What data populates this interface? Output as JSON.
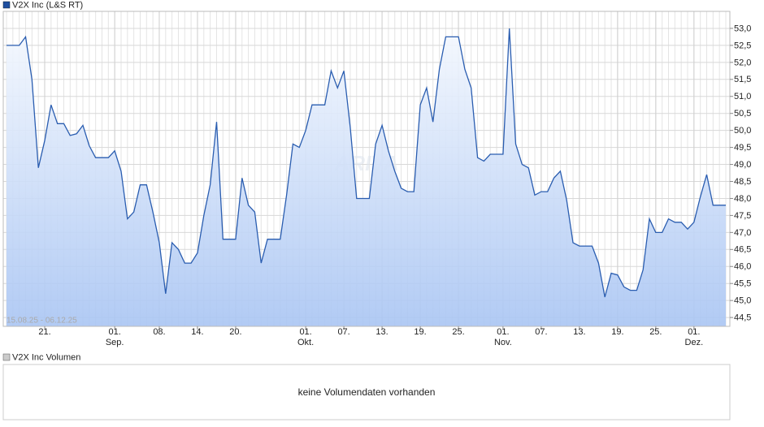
{
  "chart_data": {
    "type": "area-line",
    "title": "V2X Inc (L&S RT)",
    "range_label": "15.08.25 - 06.12.25",
    "watermark": "ARIVA",
    "color": "#2a5db0",
    "grid": true,
    "y_axis_side": "right",
    "xlim": [
      "2025-08-15",
      "2025-12-06"
    ],
    "ylim": [
      44.24,
      53.5
    ],
    "yticks": [
      {
        "value": 44.5,
        "label": "44,5"
      },
      {
        "value": 45.0,
        "label": "45,0"
      },
      {
        "value": 45.5,
        "label": "45,5"
      },
      {
        "value": 46.0,
        "label": "46,0"
      },
      {
        "value": 46.5,
        "label": "46,5"
      },
      {
        "value": 47.0,
        "label": "47,0"
      },
      {
        "value": 47.5,
        "label": "47,5"
      },
      {
        "value": 48.0,
        "label": "48,0"
      },
      {
        "value": 48.5,
        "label": "48,5"
      },
      {
        "value": 49.0,
        "label": "49,0"
      },
      {
        "value": 49.5,
        "label": "49,5"
      },
      {
        "value": 50.0,
        "label": "50,0"
      },
      {
        "value": 50.5,
        "label": "50,5"
      },
      {
        "value": 51.0,
        "label": "51,0"
      },
      {
        "value": 51.5,
        "label": "51,5"
      },
      {
        "value": 52.0,
        "label": "52,0"
      },
      {
        "value": 52.5,
        "label": "52,5"
      },
      {
        "value": 53.0,
        "label": "53,0"
      }
    ],
    "xticks": [
      {
        "value": "2025-08-21",
        "label": "21."
      },
      {
        "value": "2025-09-01",
        "label": "01.",
        "month": "Sep."
      },
      {
        "value": "2025-09-08",
        "label": "08."
      },
      {
        "value": "2025-09-14",
        "label": "14."
      },
      {
        "value": "2025-09-20",
        "label": "20."
      },
      {
        "value": "2025-10-01",
        "label": "01.",
        "month": "Okt."
      },
      {
        "value": "2025-10-07",
        "label": "07."
      },
      {
        "value": "2025-10-13",
        "label": "13."
      },
      {
        "value": "2025-10-19",
        "label": "19."
      },
      {
        "value": "2025-10-25",
        "label": "25."
      },
      {
        "value": "2025-11-01",
        "label": "01.",
        "month": "Nov."
      },
      {
        "value": "2025-11-07",
        "label": "07."
      },
      {
        "value": "2025-11-13",
        "label": "13."
      },
      {
        "value": "2025-11-19",
        "label": "19."
      },
      {
        "value": "2025-11-25",
        "label": "25."
      },
      {
        "value": "2025-12-01",
        "label": "01.",
        "month": "Dez."
      }
    ],
    "x": [
      "2025-08-15",
      "2025-08-16",
      "2025-08-17",
      "2025-08-18",
      "2025-08-19",
      "2025-08-20",
      "2025-08-21",
      "2025-08-22",
      "2025-08-23",
      "2025-08-24",
      "2025-08-25",
      "2025-08-26",
      "2025-08-27",
      "2025-08-28",
      "2025-08-29",
      "2025-08-30",
      "2025-08-31",
      "2025-09-01",
      "2025-09-02",
      "2025-09-03",
      "2025-09-04",
      "2025-09-05",
      "2025-09-06",
      "2025-09-07",
      "2025-09-08",
      "2025-09-09",
      "2025-09-10",
      "2025-09-11",
      "2025-09-12",
      "2025-09-13",
      "2025-09-14",
      "2025-09-15",
      "2025-09-16",
      "2025-09-17",
      "2025-09-18",
      "2025-09-19",
      "2025-09-20",
      "2025-09-21",
      "2025-09-22",
      "2025-09-23",
      "2025-09-24",
      "2025-09-25",
      "2025-09-26",
      "2025-09-27",
      "2025-09-28",
      "2025-09-29",
      "2025-09-30",
      "2025-10-01",
      "2025-10-02",
      "2025-10-03",
      "2025-10-04",
      "2025-10-05",
      "2025-10-06",
      "2025-10-07",
      "2025-10-08",
      "2025-10-09",
      "2025-10-10",
      "2025-10-11",
      "2025-10-12",
      "2025-10-13",
      "2025-10-14",
      "2025-10-15",
      "2025-10-16",
      "2025-10-17",
      "2025-10-18",
      "2025-10-19",
      "2025-10-20",
      "2025-10-21",
      "2025-10-22",
      "2025-10-23",
      "2025-10-24",
      "2025-10-25",
      "2025-10-26",
      "2025-10-27",
      "2025-10-28",
      "2025-10-29",
      "2025-10-30",
      "2025-10-31",
      "2025-11-01",
      "2025-11-02",
      "2025-11-03",
      "2025-11-04",
      "2025-11-05",
      "2025-11-06",
      "2025-11-07",
      "2025-11-08",
      "2025-11-09",
      "2025-11-10",
      "2025-11-11",
      "2025-11-12",
      "2025-11-13",
      "2025-11-14",
      "2025-11-15",
      "2025-11-16",
      "2025-11-17",
      "2025-11-18",
      "2025-11-19",
      "2025-11-20",
      "2025-11-21",
      "2025-11-22",
      "2025-11-23",
      "2025-11-24",
      "2025-11-25",
      "2025-11-26",
      "2025-11-27",
      "2025-11-28",
      "2025-11-29",
      "2025-11-30",
      "2025-12-01",
      "2025-12-02",
      "2025-12-03",
      "2025-12-04",
      "2025-12-05",
      "2025-12-06"
    ],
    "values": [
      52.5,
      52.5,
      52.5,
      52.75,
      51.5,
      48.9,
      49.7,
      50.75,
      50.2,
      50.2,
      49.85,
      49.9,
      50.15,
      49.55,
      49.2,
      49.2,
      49.2,
      49.4,
      48.8,
      47.4,
      47.6,
      48.4,
      48.4,
      47.6,
      46.7,
      45.2,
      46.7,
      46.5,
      46.1,
      46.1,
      46.4,
      47.5,
      48.4,
      50.25,
      46.8,
      46.8,
      46.8,
      48.6,
      47.8,
      47.6,
      46.1,
      46.8,
      46.8,
      46.8,
      48.1,
      49.6,
      49.5,
      50.0,
      50.75,
      50.75,
      50.75,
      51.75,
      51.25,
      51.75,
      50.1,
      48.0,
      48.0,
      48.0,
      49.6,
      50.15,
      49.4,
      48.8,
      48.3,
      48.2,
      48.2,
      50.75,
      51.25,
      50.25,
      51.8,
      52.75,
      52.75,
      52.75,
      51.8,
      51.25,
      49.2,
      49.1,
      49.3,
      49.3,
      49.3,
      53.0,
      49.6,
      49.0,
      48.9,
      48.1,
      48.2,
      48.2,
      48.6,
      48.8,
      47.95,
      46.7,
      46.6,
      46.6,
      46.6,
      46.1,
      45.1,
      45.8,
      45.75,
      45.4,
      45.3,
      45.3,
      45.9,
      47.4,
      47.0,
      47.0,
      47.4,
      47.3,
      47.3,
      47.1,
      47.3,
      48.05,
      48.7,
      47.8,
      47.8,
      47.8
    ]
  },
  "volume_panel": {
    "title": "V2X Inc Volumen",
    "message": "keine Volumendaten vorhanden"
  }
}
